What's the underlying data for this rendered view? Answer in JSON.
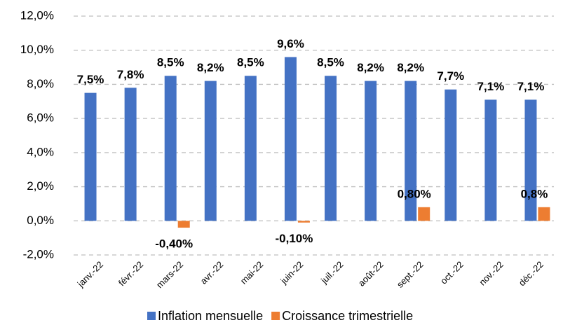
{
  "chart_data": {
    "type": "bar",
    "categories": [
      "janv.-22",
      "févr.-22",
      "mars-22",
      "avr.-22",
      "mai-22",
      "juin-22",
      "juil.-22",
      "août-22",
      "sept.-22",
      "oct.-22",
      "nov.-22",
      "déc.-22"
    ],
    "series": [
      {
        "name": "Inflation mensuelle",
        "color": "#4472c4",
        "values": [
          7.5,
          7.8,
          8.5,
          8.2,
          8.5,
          9.6,
          8.5,
          8.2,
          8.2,
          7.7,
          7.1,
          7.1
        ],
        "value_labels": [
          "7,5%",
          "7,8%",
          "8,5%",
          "8,2%",
          "8,5%",
          "9,6%",
          "8,5%",
          "8,2%",
          "8,2%",
          "7,7%",
          "7,1%",
          "7,1%"
        ]
      },
      {
        "name": "Croissance trimestrielle",
        "color": "#ed7d31",
        "values": [
          null,
          null,
          -0.4,
          null,
          null,
          -0.1,
          null,
          null,
          0.8,
          null,
          null,
          0.8
        ],
        "value_labels": [
          null,
          null,
          "-0,40%",
          null,
          null,
          "-0,10%",
          null,
          null,
          "0,80%",
          null,
          null,
          "0,8%"
        ]
      }
    ],
    "ylim": [
      -2,
      12
    ],
    "yticks": [
      {
        "value": -2,
        "label": "-2,0%"
      },
      {
        "value": 0,
        "label": "0,0%"
      },
      {
        "value": 2,
        "label": "2,0%"
      },
      {
        "value": 4,
        "label": "4,0%"
      },
      {
        "value": 6,
        "label": "6,0%"
      },
      {
        "value": 8,
        "label": "8,0%"
      },
      {
        "value": 10,
        "label": "10,0%"
      },
      {
        "value": 12,
        "label": "12,0%"
      }
    ],
    "grid": true,
    "legend": "bottom"
  }
}
